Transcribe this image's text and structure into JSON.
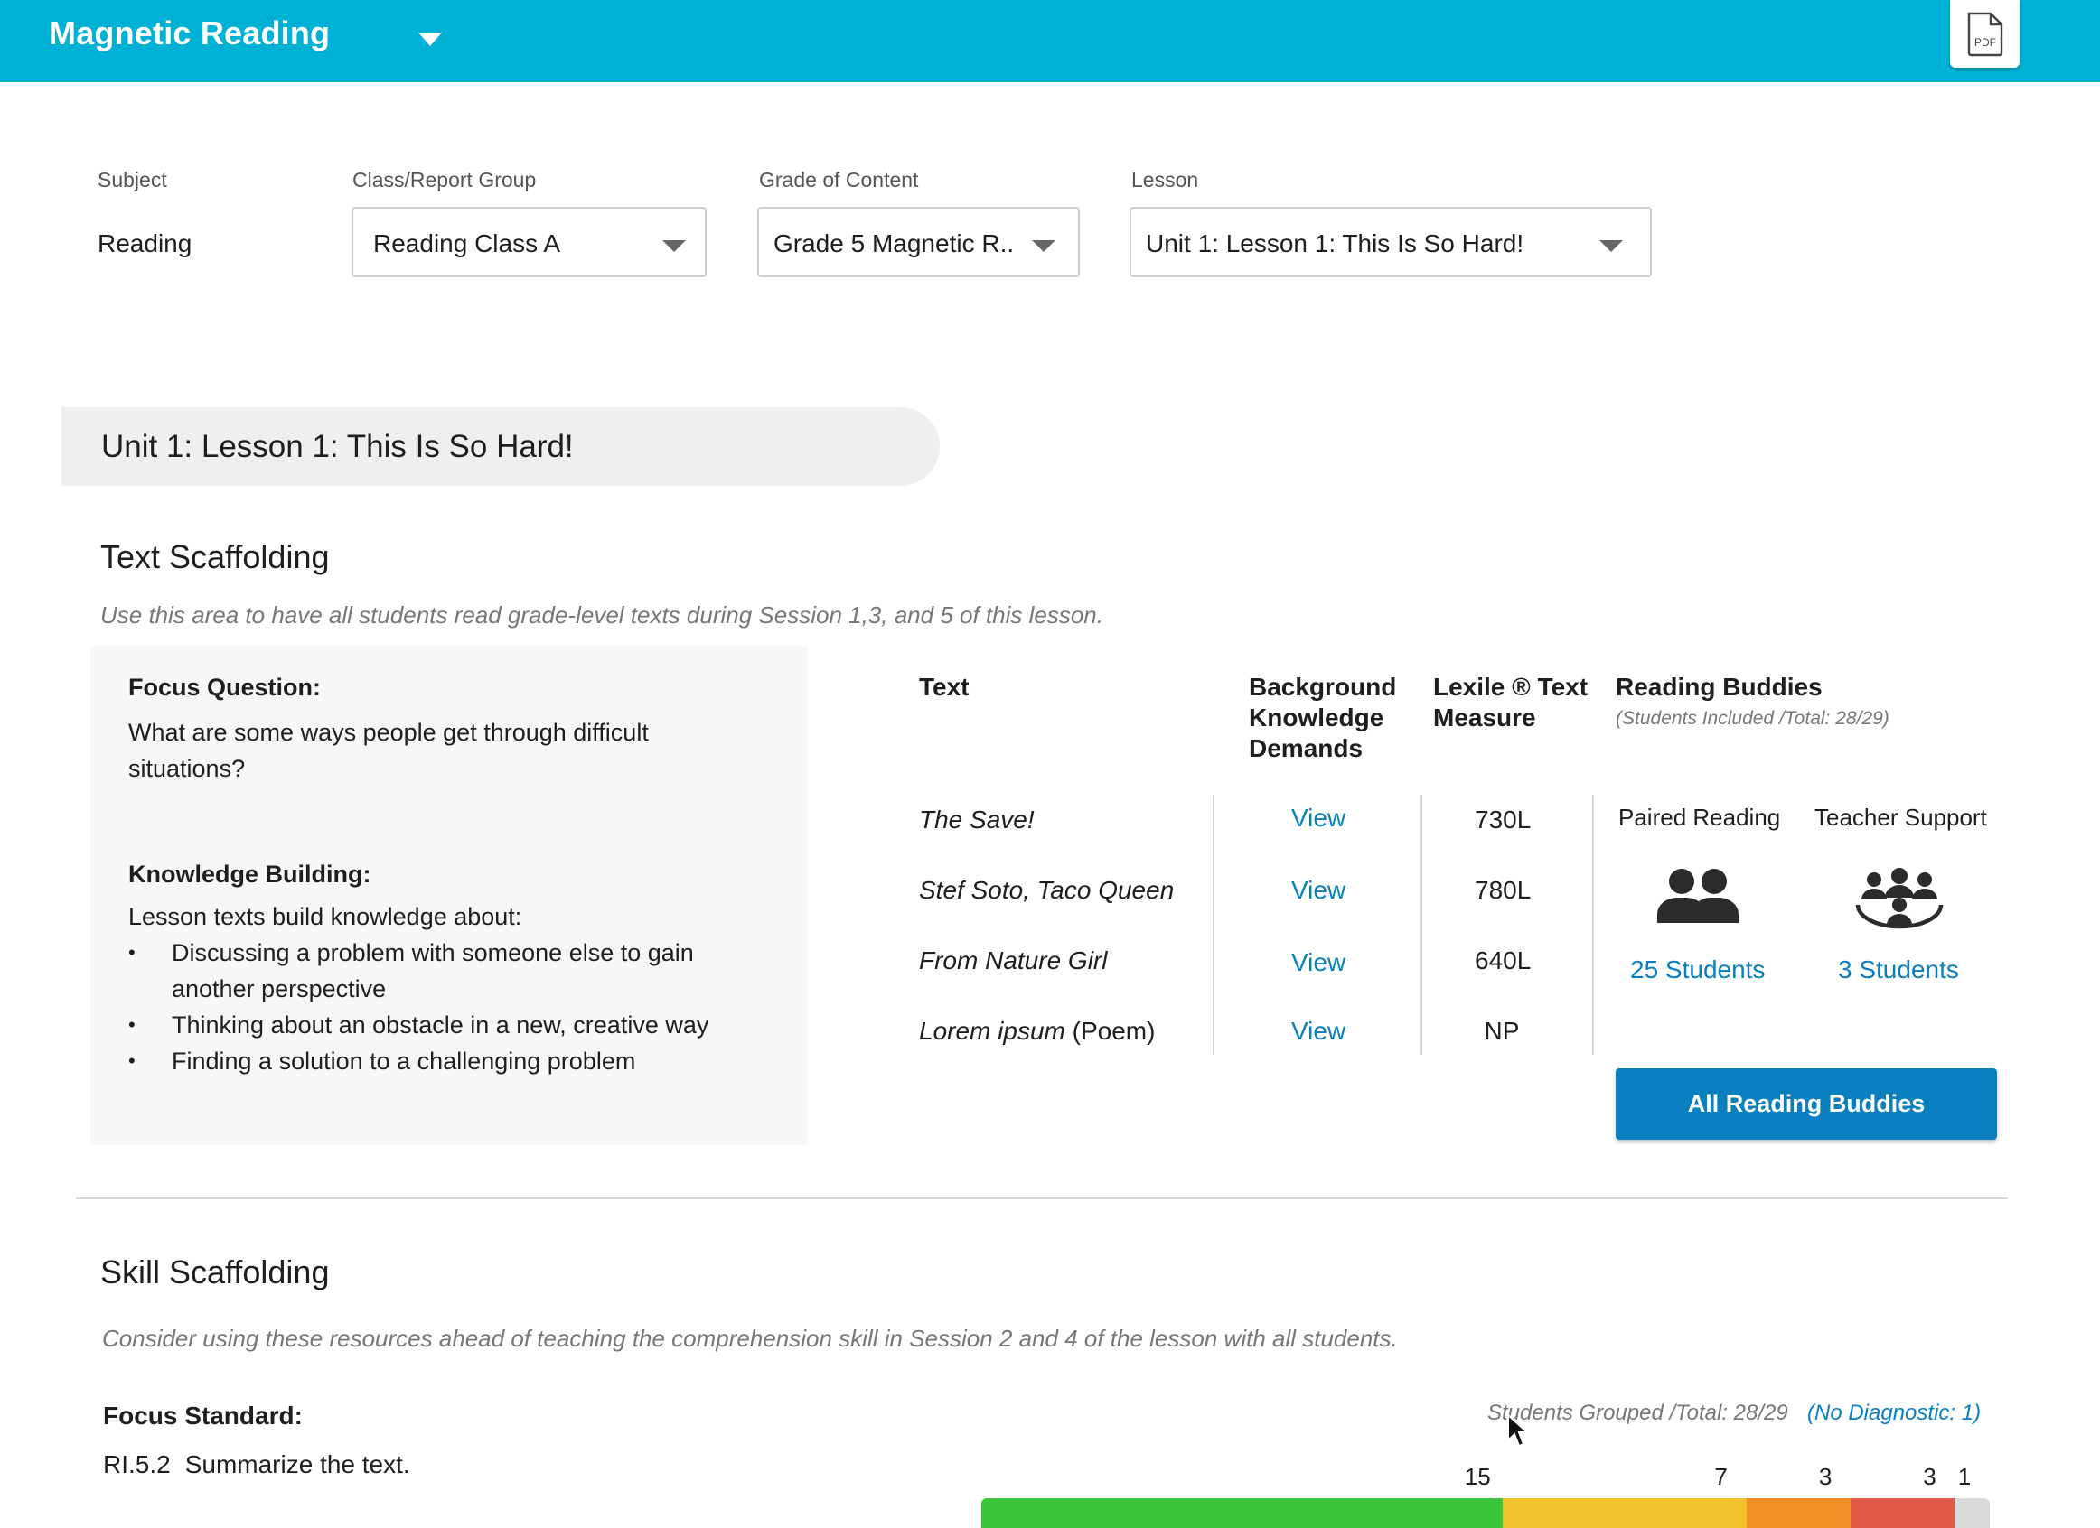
{
  "header": {
    "app_title": "Magnetic Reading",
    "bg_color": "#00b1d6",
    "pdf_icon_label": "PDF"
  },
  "filters": {
    "subject": {
      "label": "Subject",
      "value": "Reading"
    },
    "class_group": {
      "label": "Class/Report Group",
      "value": "Reading Class A"
    },
    "grade": {
      "label": "Grade of Content",
      "value": "Grade 5 Magnetic R.."
    },
    "lesson": {
      "label": "Lesson",
      "value": "Unit 1: Lesson 1: This Is So Hard!"
    }
  },
  "lesson_title": "Unit 1: Lesson 1: This Is So Hard!",
  "text_scaffolding": {
    "title": "Text Scaffolding",
    "subtitle": "Use this area to have all students read grade-level texts during Session 1,3, and 5 of this lesson.",
    "focus_question_label": "Focus Question:",
    "focus_question": "What are some ways people get through difficult situations?",
    "knowledge_label": "Knowledge Building:",
    "knowledge_intro": "Lesson texts build knowledge about:",
    "knowledge_items": [
      "Discussing a problem with someone else to gain another perspective",
      "Thinking about an obstacle in a new, creative way",
      "Finding a solution to a challenging problem"
    ],
    "columns": {
      "text": "Text",
      "background": "Background Knowledge Demands",
      "lexile": "Lexile ® Text Measure",
      "buddies": "Reading Buddies",
      "buddies_sub": "(Students Included /Total: 28/29)"
    },
    "rows": [
      {
        "title": "The Save!",
        "suffix": "",
        "link": "View",
        "lexile": "730L"
      },
      {
        "title": "Stef Soto, Taco Queen",
        "suffix": "",
        "link": "View",
        "lexile": "780L"
      },
      {
        "title": "From Nature Girl",
        "suffix": "",
        "link": "View",
        "lexile": "640L"
      },
      {
        "title": "Lorem ipsum",
        "suffix": " (Poem)",
        "link": "View",
        "lexile": "NP"
      }
    ],
    "buddies": {
      "paired_label": "Paired Reading",
      "paired_icon": "two-people-icon",
      "paired_count": "25 Students",
      "teacher_label": "Teacher Support",
      "teacher_icon": "group-circle-icon",
      "teacher_count": "3 Students",
      "all_button": "All Reading Buddies"
    }
  },
  "skill_scaffolding": {
    "title": "Skill Scaffolding",
    "subtitle": "Consider using these resources ahead of teaching the comprehension skill in Session 2 and 4 of the lesson with all students.",
    "focus_standard_label": "Focus Standard:",
    "standard_code": "RI.5.2",
    "standard_text": "Summarize the text.",
    "grouped_text": "Students Grouped /Total: 28/29",
    "no_diagnostic": "(No Diagnostic: 1)",
    "segments": [
      {
        "count": "15",
        "value": 15,
        "color": "#3cc43c"
      },
      {
        "count": "7",
        "value": 7,
        "color": "#f2c12e"
      },
      {
        "count": "3",
        "value": 3,
        "color": "#ef8e24"
      },
      {
        "count": "3",
        "value": 3,
        "color": "#e15a48"
      },
      {
        "count": "1",
        "value": 1,
        "color": "#d9d9d9"
      }
    ]
  },
  "colors": {
    "link": "#0a7fc0",
    "button": "#0a7fc0"
  }
}
